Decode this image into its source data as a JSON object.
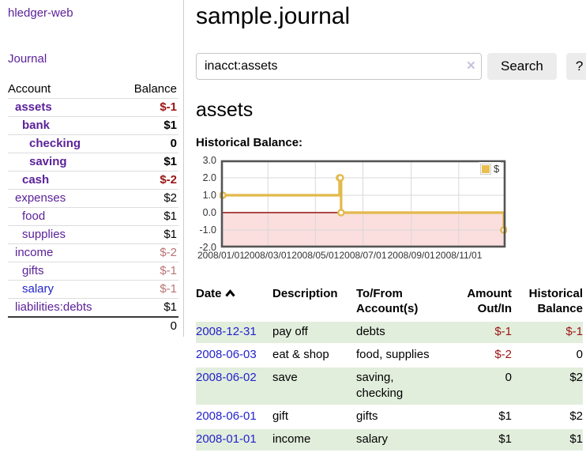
{
  "app": {
    "title": "hledger-web"
  },
  "sidebar": {
    "journal_link": "Journal",
    "accounts": {
      "headers": {
        "account": "Account",
        "balance": "Balance"
      },
      "rows": [
        {
          "name": "assets",
          "depth": 1,
          "bold": true,
          "balance": "$-1",
          "balance_style": "neg-strong",
          "link_style": "purple"
        },
        {
          "name": "bank",
          "depth": 2,
          "bold": true,
          "balance": "$1",
          "balance_style": "pos",
          "link_style": "purple"
        },
        {
          "name": "checking",
          "depth": 3,
          "bold": true,
          "balance": "0",
          "balance_style": "pos",
          "link_style": "purple"
        },
        {
          "name": "saving",
          "depth": 3,
          "bold": true,
          "balance": "$1",
          "balance_style": "pos",
          "link_style": "purple"
        },
        {
          "name": "cash",
          "depth": 2,
          "bold": true,
          "balance": "$-2",
          "balance_style": "neg-strong",
          "link_style": "purple"
        },
        {
          "name": "expenses",
          "depth": 1,
          "bold": false,
          "balance": "$2",
          "balance_style": "pos",
          "link_style": "purple"
        },
        {
          "name": "food",
          "depth": 2,
          "bold": false,
          "balance": "$1",
          "balance_style": "pos",
          "link_style": "purple"
        },
        {
          "name": "supplies",
          "depth": 2,
          "bold": false,
          "balance": "$1",
          "balance_style": "pos",
          "link_style": "purple"
        },
        {
          "name": "income",
          "depth": 1,
          "bold": false,
          "balance": "$-2",
          "balance_style": "neg-soft",
          "link_style": "purple"
        },
        {
          "name": "gifts",
          "depth": 2,
          "bold": false,
          "balance": "$-1",
          "balance_style": "neg-soft",
          "link_style": "purple"
        },
        {
          "name": "salary",
          "depth": 2,
          "bold": false,
          "balance": "$-1",
          "balance_style": "neg-soft",
          "link_style": "blue"
        },
        {
          "name": "liabilities:debts",
          "depth": 1,
          "bold": false,
          "balance": "$1",
          "balance_style": "pos",
          "link_style": "purple"
        }
      ],
      "total": "0"
    }
  },
  "main": {
    "title": "sample.journal",
    "search": {
      "value": "inacct:assets",
      "clear_icon": "×",
      "button": "Search",
      "help_button": "?"
    },
    "account_heading": "assets",
    "chart_label": "Historical Balance:"
  },
  "chart_data": {
    "type": "line",
    "step": true,
    "title": "Historical Balance",
    "legend": "$",
    "legend_position": "top-right",
    "grid": true,
    "ylim": [
      -2,
      3
    ],
    "yticks": [
      "3.0",
      "2.0",
      "1.0",
      "0.0",
      "-1.0",
      "-2.0"
    ],
    "grid_y_values": [
      2,
      1,
      -1
    ],
    "x_span_days": 365,
    "xticks": [
      {
        "label": "2008/01/01",
        "day": 0
      },
      {
        "label": "2008/03/01",
        "day": 60
      },
      {
        "label": "2008/05/01",
        "day": 121
      },
      {
        "label": "2008/07/01",
        "day": 182
      },
      {
        "label": "2008/09/01",
        "day": 244
      },
      {
        "label": "2008/11/01",
        "day": 305
      }
    ],
    "series": [
      {
        "name": "$",
        "color": "#e3b94a",
        "points": [
          {
            "date": "2008-01-01",
            "day": 0,
            "value": 1
          },
          {
            "date": "2008-06-01",
            "day": 152,
            "value": 2
          },
          {
            "date": "2008-06-02",
            "day": 153,
            "value": 2
          },
          {
            "date": "2008-06-03",
            "day": 154,
            "value": 0
          },
          {
            "date": "2008-12-31",
            "day": 365,
            "value": -1
          }
        ]
      }
    ],
    "negative_region_color": "#fbdede",
    "zero_line_color": "#8f1010"
  },
  "register": {
    "headers": {
      "date": "Date",
      "sort_icon": "chevron-up",
      "description": "Description",
      "account": "To/From Account(s)",
      "amount": "Amount Out/In",
      "balance": "Historical Balance"
    },
    "rows": [
      {
        "date": "2008-12-31",
        "description": "pay off",
        "accounts": "debts",
        "amount": "$-1",
        "amount_neg": true,
        "balance": "$-1",
        "balance_neg": true,
        "shaded": true
      },
      {
        "date": "2008-06-03",
        "description": "eat & shop",
        "accounts": "food, supplies",
        "amount": "$-2",
        "amount_neg": true,
        "balance": "0",
        "balance_neg": false,
        "shaded": false
      },
      {
        "date": "2008-06-02",
        "description": "save",
        "accounts": "saving, checking",
        "amount": "0",
        "amount_neg": false,
        "balance": "$2",
        "balance_neg": false,
        "shaded": true
      },
      {
        "date": "2008-06-01",
        "description": "gift",
        "accounts": "gifts",
        "amount": "$1",
        "amount_neg": false,
        "balance": "$2",
        "balance_neg": false,
        "shaded": false
      },
      {
        "date": "2008-01-01",
        "description": "income",
        "accounts": "salary",
        "amount": "$1",
        "amount_neg": false,
        "balance": "$1",
        "balance_neg": false,
        "shaded": true
      }
    ]
  }
}
